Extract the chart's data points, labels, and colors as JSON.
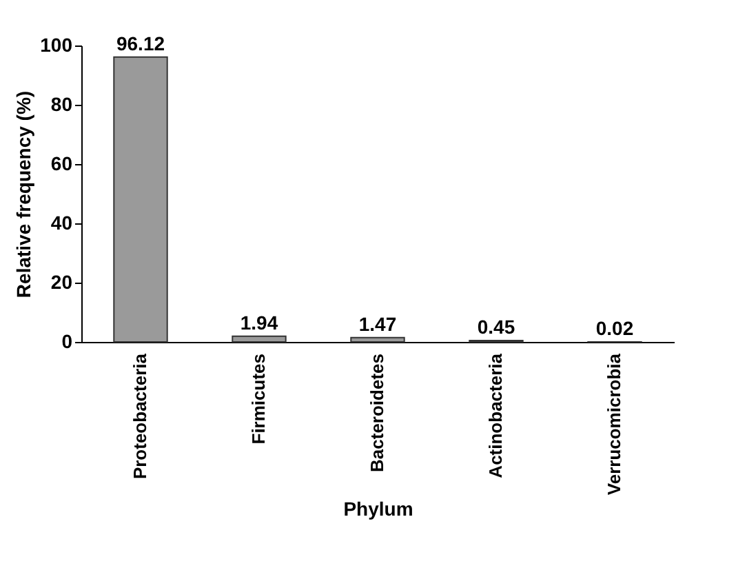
{
  "chart_data": {
    "type": "bar",
    "xlabel": "Phylum",
    "ylabel": "Relative frequency (%)",
    "categories": [
      "Proteobacteria",
      "Firmicutes",
      "Bacteroidetes",
      "Actinobacteria",
      "Verrucomicrobia"
    ],
    "values": [
      96.12,
      1.94,
      1.47,
      0.45,
      0.02
    ],
    "color": "#9a9a9a",
    "ylim": [
      0,
      100
    ],
    "yticks": [
      0,
      20,
      40,
      60,
      80,
      100
    ],
    "data_labels": true
  }
}
